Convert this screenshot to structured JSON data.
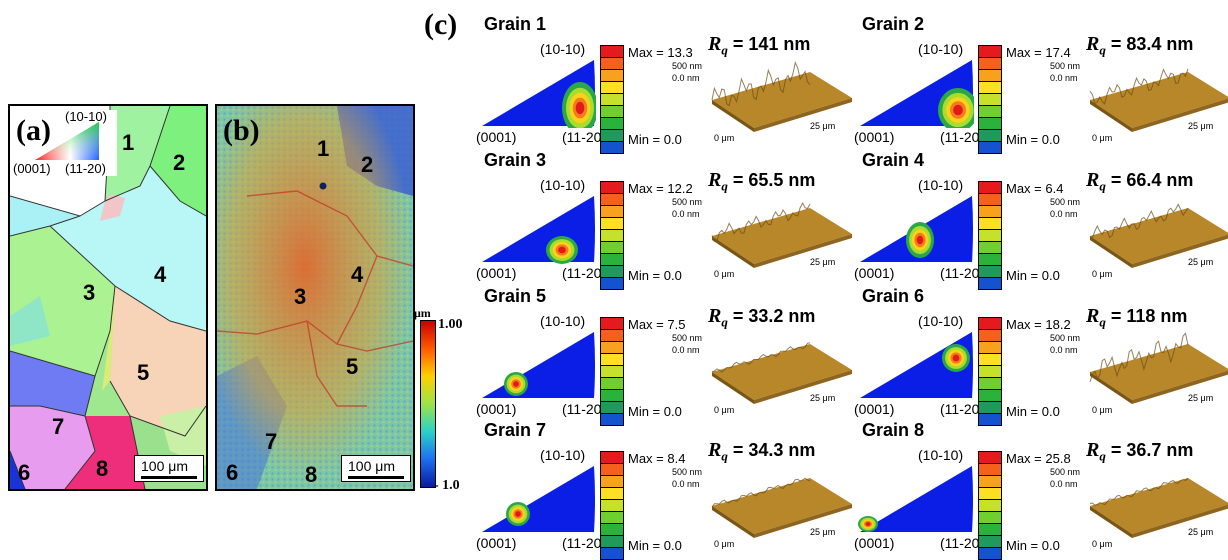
{
  "panel_a": {
    "label": "(a)",
    "ipf_key": {
      "top": "(10-10)",
      "left": "(0001)",
      "right": "(11-20)"
    },
    "grains": [
      "1",
      "2",
      "3",
      "4",
      "5",
      "6",
      "7",
      "8"
    ],
    "scale_bar": "100 μm"
  },
  "panel_b": {
    "label": "(b)",
    "grains": [
      "1",
      "2",
      "3",
      "4",
      "5",
      "6",
      "7",
      "8"
    ],
    "scale_bar": "100 μm",
    "colorbar": {
      "unit": "μm",
      "max": "1.00",
      "min": "- 1.0"
    }
  },
  "panel_c": {
    "label": "(c)",
    "axis_labels": {
      "top": "(10-10)",
      "left": "(0001)",
      "right": "(11-20)"
    },
    "afm_labels": {
      "z_top": "500 nm",
      "z_zero": "0.0 nm",
      "x_zero": "0 μm",
      "x_end": "25 μm"
    },
    "grains": [
      {
        "title": "Grain 1",
        "max": "Max = 13.3",
        "min": "Min = 0.0",
        "rq_value": " = 141 nm"
      },
      {
        "title": "Grain 2",
        "max": "Max = 17.4",
        "min": "Min = 0.0",
        "rq_value": " = 83.4 nm"
      },
      {
        "title": "Grain 3",
        "max": "Max = 12.2",
        "min": "Min = 0.0",
        "rq_value": " = 65.5 nm"
      },
      {
        "title": "Grain 4",
        "max": "Max = 6.4",
        "min": "Min = 0.0",
        "rq_value": " = 66.4 nm"
      },
      {
        "title": "Grain 5",
        "max": "Max = 7.5",
        "min": "Min = 0.0",
        "rq_value": " = 33.2 nm"
      },
      {
        "title": "Grain 6",
        "max": "Max = 18.2",
        "min": "Min = 0.0",
        "rq_value": " = 118 nm"
      },
      {
        "title": "Grain 7",
        "max": "Max = 8.4",
        "min": "Min = 0.0",
        "rq_value": " = 34.3 nm"
      },
      {
        "title": "Grain 8",
        "max": "Max = 25.8",
        "min": "Min = 0.0",
        "rq_value": " = 36.7 nm"
      }
    ],
    "rq_symbol": "R",
    "rq_sub": "q"
  },
  "colors": {
    "ipf_blue": "#0a1ee6",
    "legend_scale": [
      "#e41a1c",
      "#f4611d",
      "#f8a11c",
      "#fde024",
      "#c6e12a",
      "#6ecf2e",
      "#2bb23a",
      "#1f9a5a",
      "#1552d0"
    ],
    "afm_gold": "#b8872a"
  }
}
